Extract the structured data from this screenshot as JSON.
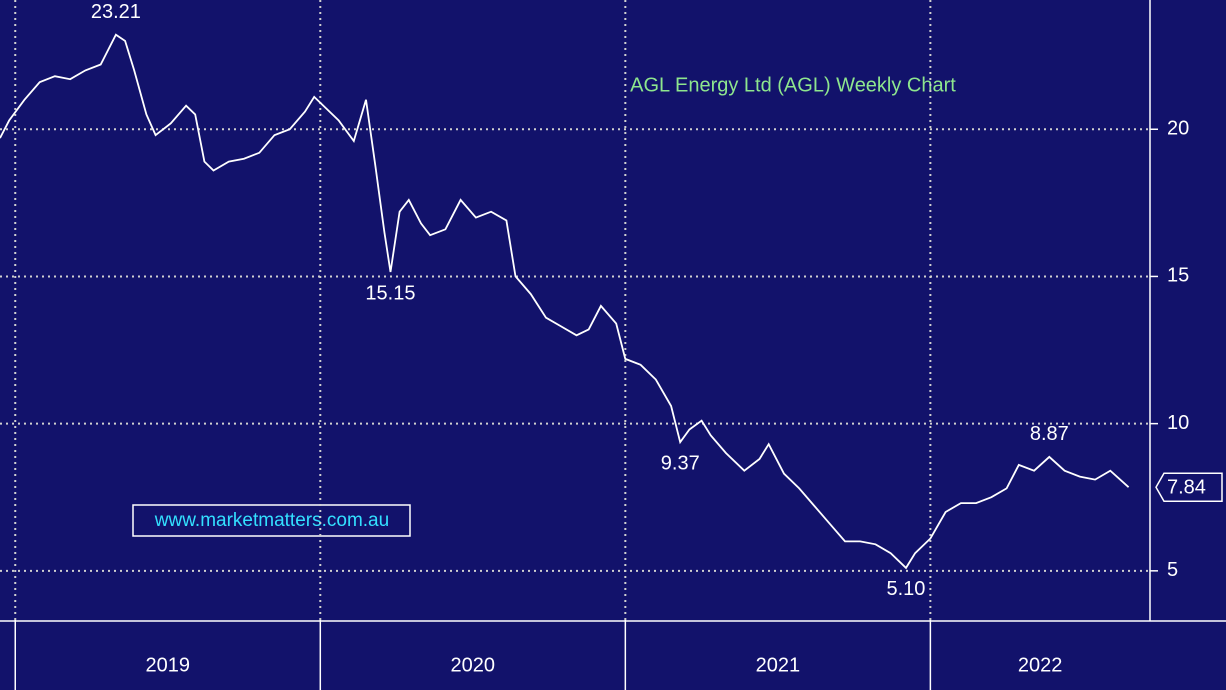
{
  "chart_data": {
    "type": "line",
    "title": "AGL Energy Ltd (AGL) Weekly Chart",
    "watermark": "www.marketmatters.com.au",
    "x": [
      2018.95,
      2018.98,
      2019.03,
      2019.08,
      2019.13,
      2019.18,
      2019.23,
      2019.28,
      2019.33,
      2019.36,
      2019.39,
      2019.43,
      2019.46,
      2019.51,
      2019.56,
      2019.59,
      2019.62,
      2019.65,
      2019.7,
      2019.75,
      2019.8,
      2019.85,
      2019.9,
      2019.95,
      2019.98,
      2020.02,
      2020.06,
      2020.11,
      2020.15,
      2020.18,
      2020.21,
      2020.23,
      2020.26,
      2020.29,
      2020.33,
      2020.36,
      2020.41,
      2020.46,
      2020.51,
      2020.56,
      2020.61,
      2020.64,
      2020.69,
      2020.74,
      2020.79,
      2020.84,
      2020.88,
      2020.92,
      2020.97,
      2021.0,
      2021.05,
      2021.1,
      2021.15,
      2021.18,
      2021.21,
      2021.25,
      2021.28,
      2021.33,
      2021.39,
      2021.44,
      2021.47,
      2021.52,
      2021.57,
      2021.62,
      2021.67,
      2021.72,
      2021.77,
      2021.82,
      2021.87,
      2021.92,
      2021.95,
      2022.0,
      2022.05,
      2022.1,
      2022.15,
      2022.2,
      2022.25,
      2022.29,
      2022.34,
      2022.39,
      2022.44,
      2022.49,
      2022.54,
      2022.59,
      2022.65
    ],
    "series": [
      {
        "name": "AGL",
        "color": "#ffffff",
        "values": [
          19.7,
          20.3,
          21.0,
          21.6,
          21.8,
          21.7,
          22.0,
          22.2,
          23.21,
          23.0,
          22.0,
          20.5,
          19.8,
          20.2,
          20.8,
          20.5,
          18.9,
          18.6,
          18.9,
          19.0,
          19.2,
          19.8,
          20.0,
          20.6,
          21.1,
          20.7,
          20.3,
          19.6,
          21.0,
          18.8,
          16.5,
          15.15,
          17.2,
          17.6,
          16.8,
          16.4,
          16.6,
          17.6,
          17.0,
          17.2,
          16.9,
          15.0,
          14.4,
          13.6,
          13.3,
          13.0,
          13.2,
          14.0,
          13.4,
          12.2,
          12.0,
          11.5,
          10.6,
          9.37,
          9.8,
          10.1,
          9.6,
          9.0,
          8.4,
          8.8,
          9.3,
          8.3,
          7.8,
          7.2,
          6.6,
          6.0,
          6.0,
          5.9,
          5.6,
          5.1,
          5.6,
          6.1,
          7.0,
          7.3,
          7.3,
          7.5,
          7.8,
          8.6,
          8.4,
          8.87,
          8.4,
          8.2,
          8.1,
          8.4,
          7.84
        ]
      }
    ],
    "annotations": [
      {
        "label": "23.21",
        "value": 23.21,
        "x": 2019.33
      },
      {
        "label": "15.15",
        "value": 15.15,
        "x": 2020.23
      },
      {
        "label": "9.37",
        "value": 9.37,
        "x": 2021.18
      },
      {
        "label": "5.10",
        "value": 5.1,
        "x": 2021.92
      },
      {
        "label": "8.87",
        "value": 8.87,
        "x": 2022.39
      }
    ],
    "last_price": 7.84,
    "xlim": [
      2018.95,
      2022.72
    ],
    "xticks": [
      2019,
      2020,
      2021,
      2022
    ],
    "ylim": [
      3.33,
      24.39
    ],
    "yticks": [
      5,
      10,
      15,
      20
    ],
    "grid": true
  }
}
